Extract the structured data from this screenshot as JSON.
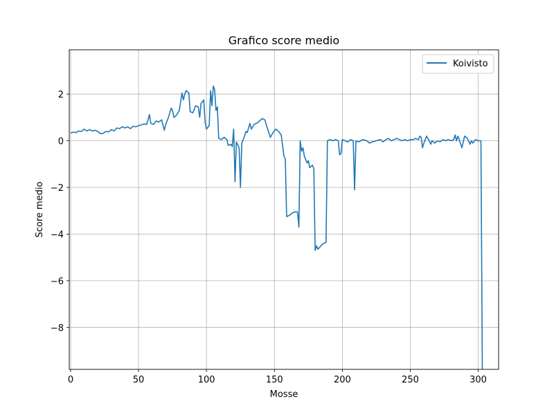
{
  "chart_data": {
    "type": "line",
    "title": "Grafico score medio",
    "xlabel": "Mosse",
    "ylabel": "Score medio",
    "xlim": [
      -1,
      315
    ],
    "ylim": [
      -9.8,
      3.9
    ],
    "xticks": [
      0,
      50,
      100,
      150,
      200,
      250,
      300
    ],
    "yticks": [
      2,
      0,
      -2,
      -4,
      -6,
      -8
    ],
    "xtick_labels": [
      "0",
      "50",
      "100",
      "150",
      "200",
      "250",
      "300"
    ],
    "ytick_labels": [
      "2",
      "0",
      "−2",
      "−4",
      "−6",
      "−8"
    ],
    "grid": true,
    "legend_position": "upper right",
    "series": [
      {
        "name": "Koivisto",
        "color": "#1f77b4",
        "points": [
          [
            0,
            0.33
          ],
          [
            2,
            0.37
          ],
          [
            4,
            0.35
          ],
          [
            6,
            0.42
          ],
          [
            8,
            0.4
          ],
          [
            10,
            0.5
          ],
          [
            12,
            0.42
          ],
          [
            14,
            0.48
          ],
          [
            16,
            0.42
          ],
          [
            18,
            0.45
          ],
          [
            20,
            0.4
          ],
          [
            22,
            0.3
          ],
          [
            24,
            0.32
          ],
          [
            26,
            0.4
          ],
          [
            28,
            0.38
          ],
          [
            30,
            0.48
          ],
          [
            32,
            0.42
          ],
          [
            34,
            0.55
          ],
          [
            36,
            0.52
          ],
          [
            38,
            0.6
          ],
          [
            40,
            0.55
          ],
          [
            42,
            0.6
          ],
          [
            44,
            0.52
          ],
          [
            46,
            0.62
          ],
          [
            48,
            0.6
          ],
          [
            50,
            0.65
          ],
          [
            52,
            0.68
          ],
          [
            54,
            0.72
          ],
          [
            56,
            0.7
          ],
          [
            58,
            1.12
          ],
          [
            59,
            0.75
          ],
          [
            61,
            0.7
          ],
          [
            63,
            0.85
          ],
          [
            65,
            0.8
          ],
          [
            67,
            0.9
          ],
          [
            69,
            0.45
          ],
          [
            70,
            0.7
          ],
          [
            72,
            1.0
          ],
          [
            74,
            1.4
          ],
          [
            75,
            1.3
          ],
          [
            76,
            1.0
          ],
          [
            78,
            1.1
          ],
          [
            80,
            1.3
          ],
          [
            82,
            2.05
          ],
          [
            83,
            1.75
          ],
          [
            84,
            2.0
          ],
          [
            85,
            2.15
          ],
          [
            87,
            2.05
          ],
          [
            88,
            1.25
          ],
          [
            90,
            1.2
          ],
          [
            92,
            1.5
          ],
          [
            94,
            1.45
          ],
          [
            95,
            1.0
          ],
          [
            96,
            1.6
          ],
          [
            98,
            1.75
          ],
          [
            99,
            0.8
          ],
          [
            100,
            0.5
          ],
          [
            102,
            0.65
          ],
          [
            103,
            2.15
          ],
          [
            104,
            1.5
          ],
          [
            105,
            2.35
          ],
          [
            106,
            2.2
          ],
          [
            107,
            1.3
          ],
          [
            108,
            1.45
          ],
          [
            109,
            0.1
          ],
          [
            111,
            0.05
          ],
          [
            113,
            0.15
          ],
          [
            115,
            0.05
          ],
          [
            116,
            -0.2
          ],
          [
            118,
            -0.15
          ],
          [
            119,
            -0.25
          ],
          [
            120,
            0.5
          ],
          [
            121,
            -1.75
          ],
          [
            122,
            -0.05
          ],
          [
            124,
            -0.3
          ],
          [
            125,
            -2.0
          ],
          [
            126,
            -0.1
          ],
          [
            128,
            0.2
          ],
          [
            129,
            0.4
          ],
          [
            130,
            0.35
          ],
          [
            132,
            0.75
          ],
          [
            133,
            0.5
          ],
          [
            135,
            0.7
          ],
          [
            137,
            0.75
          ],
          [
            139,
            0.85
          ],
          [
            141,
            0.95
          ],
          [
            143,
            0.9
          ],
          [
            145,
            0.5
          ],
          [
            147,
            0.15
          ],
          [
            149,
            0.35
          ],
          [
            151,
            0.5
          ],
          [
            153,
            0.4
          ],
          [
            155,
            0.25
          ],
          [
            157,
            -0.65
          ],
          [
            158,
            -0.8
          ],
          [
            159,
            -3.25
          ],
          [
            161,
            -3.2
          ],
          [
            163,
            -3.1
          ],
          [
            165,
            -3.05
          ],
          [
            167,
            -3.05
          ],
          [
            168,
            -3.7
          ],
          [
            169,
            0.0
          ],
          [
            170,
            -0.45
          ],
          [
            171,
            -0.3
          ],
          [
            172,
            -0.65
          ],
          [
            174,
            -0.95
          ],
          [
            175,
            -0.85
          ],
          [
            176,
            -1.15
          ],
          [
            178,
            -1.05
          ],
          [
            179,
            -1.2
          ],
          [
            180,
            -4.7
          ],
          [
            181,
            -4.5
          ],
          [
            182,
            -4.65
          ],
          [
            185,
            -4.45
          ],
          [
            188,
            -4.35
          ],
          [
            189,
            0.0
          ],
          [
            191,
            0.05
          ],
          [
            193,
            0.0
          ],
          [
            195,
            0.05
          ],
          [
            197,
            0.0
          ],
          [
            198,
            -0.6
          ],
          [
            199,
            -0.55
          ],
          [
            200,
            0.05
          ],
          [
            202,
            0.0
          ],
          [
            204,
            -0.05
          ],
          [
            206,
            0.05
          ],
          [
            208,
            0.0
          ],
          [
            209,
            -2.1
          ],
          [
            210,
            0.0
          ],
          [
            212,
            -0.05
          ],
          [
            215,
            0.05
          ],
          [
            218,
            0.0
          ],
          [
            220,
            -0.1
          ],
          [
            222,
            -0.05
          ],
          [
            225,
            0.0
          ],
          [
            228,
            0.05
          ],
          [
            230,
            -0.05
          ],
          [
            232,
            0.05
          ],
          [
            234,
            0.1
          ],
          [
            236,
            0.0
          ],
          [
            238,
            0.05
          ],
          [
            240,
            0.1
          ],
          [
            242,
            0.05
          ],
          [
            244,
            0.0
          ],
          [
            246,
            0.05
          ],
          [
            248,
            0.0
          ],
          [
            250,
            0.05
          ],
          [
            252,
            0.05
          ],
          [
            254,
            0.1
          ],
          [
            256,
            0.05
          ],
          [
            257,
            0.2
          ],
          [
            258,
            0.15
          ],
          [
            259,
            -0.3
          ],
          [
            260,
            -0.1
          ],
          [
            262,
            0.2
          ],
          [
            264,
            0.0
          ],
          [
            265,
            -0.15
          ],
          [
            266,
            0.0
          ],
          [
            268,
            -0.1
          ],
          [
            270,
            0.0
          ],
          [
            272,
            -0.05
          ],
          [
            274,
            0.05
          ],
          [
            276,
            0.0
          ],
          [
            278,
            0.05
          ],
          [
            280,
            0.0
          ],
          [
            282,
            0.05
          ],
          [
            283,
            0.25
          ],
          [
            284,
            0.0
          ],
          [
            285,
            0.2
          ],
          [
            286,
            0.05
          ],
          [
            288,
            -0.3
          ],
          [
            290,
            0.2
          ],
          [
            292,
            0.1
          ],
          [
            294,
            -0.15
          ],
          [
            295,
            0.0
          ],
          [
            296,
            -0.1
          ],
          [
            298,
            0.05
          ],
          [
            300,
            0.0
          ],
          [
            302,
            0.0
          ],
          [
            303,
            -9.8
          ]
        ]
      }
    ]
  }
}
